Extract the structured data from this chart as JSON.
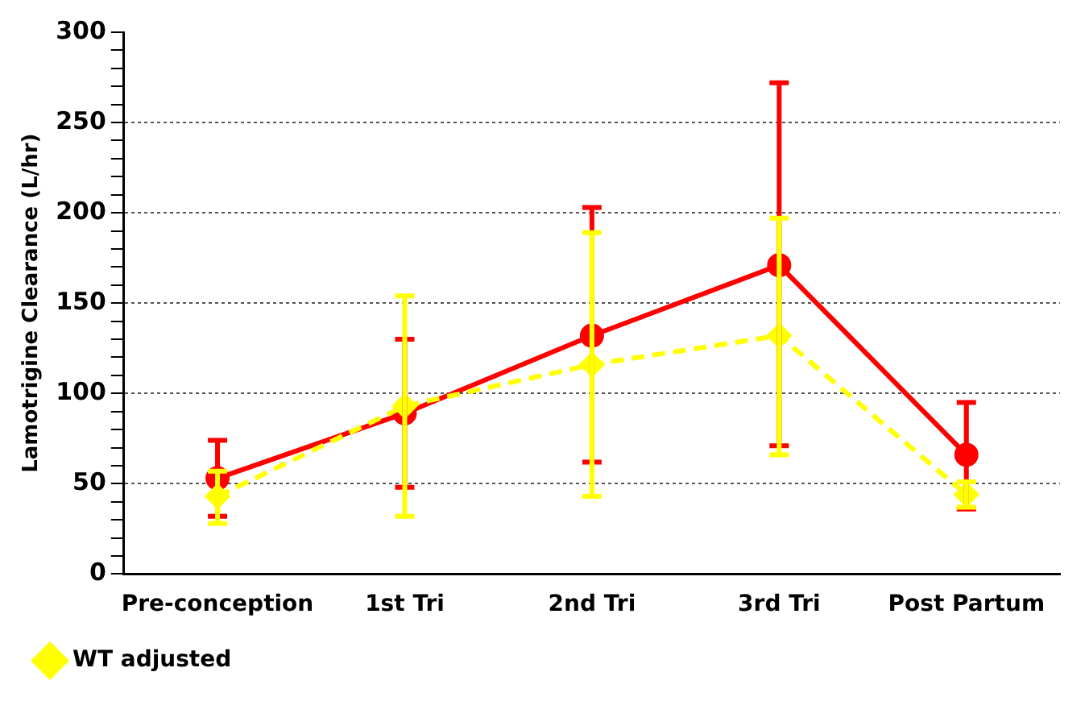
{
  "chart_data": {
    "type": "line",
    "ylabel": "Lamotrigine Clearance (L/hr)",
    "categories": [
      "Pre-conception",
      "1st Tri",
      "2nd Tri",
      "3rd Tri",
      "Post Partum"
    ],
    "ylim": [
      0,
      300
    ],
    "yticks": [
      0,
      {
        "value": 10,
        "label": null
      },
      {
        "value": 20,
        "label": null
      },
      {
        "value": 30,
        "label": null
      },
      {
        "value": 40,
        "label": null
      },
      50,
      {
        "value": 60,
        "label": null
      },
      {
        "value": 70,
        "label": null
      },
      {
        "value": 80,
        "label": null
      },
      {
        "value": 90,
        "label": null
      },
      100,
      {
        "value": 110,
        "label": null
      },
      {
        "value": 120,
        "label": null
      },
      {
        "value": 130,
        "label": null
      },
      {
        "value": 140,
        "label": null
      },
      150,
      {
        "value": 160,
        "label": null
      },
      {
        "value": 170,
        "label": null
      },
      {
        "value": 180,
        "label": null
      },
      {
        "value": 190,
        "label": null
      },
      200,
      {
        "value": 210,
        "label": null
      },
      {
        "value": 220,
        "label": null
      },
      {
        "value": 230,
        "label": null
      },
      {
        "value": 240,
        "label": null
      },
      250,
      {
        "value": 260,
        "label": null
      },
      {
        "value": 270,
        "label": null
      },
      {
        "value": 280,
        "label": null
      },
      {
        "value": 290,
        "label": null
      },
      300
    ],
    "grid": "y",
    "legend": "bottom left",
    "series": [
      {
        "color": "#ff0000",
        "marker": "circle",
        "line_style": "solid",
        "values": [
          53,
          89,
          132,
          171,
          66
        ],
        "errors": [
          [
            32,
            74
          ],
          [
            48,
            130
          ],
          [
            62,
            203
          ],
          [
            71,
            272
          ],
          [
            36,
            95
          ]
        ]
      },
      {
        "name": "WT adjusted",
        "color": "#ffff00",
        "marker": "diamond",
        "line_style": "dashed",
        "values": [
          43,
          93,
          116,
          132,
          44
        ],
        "errors": [
          [
            28,
            57
          ],
          [
            32,
            154
          ],
          [
            43,
            189
          ],
          [
            66,
            197
          ],
          [
            37,
            51
          ]
        ]
      }
    ]
  }
}
